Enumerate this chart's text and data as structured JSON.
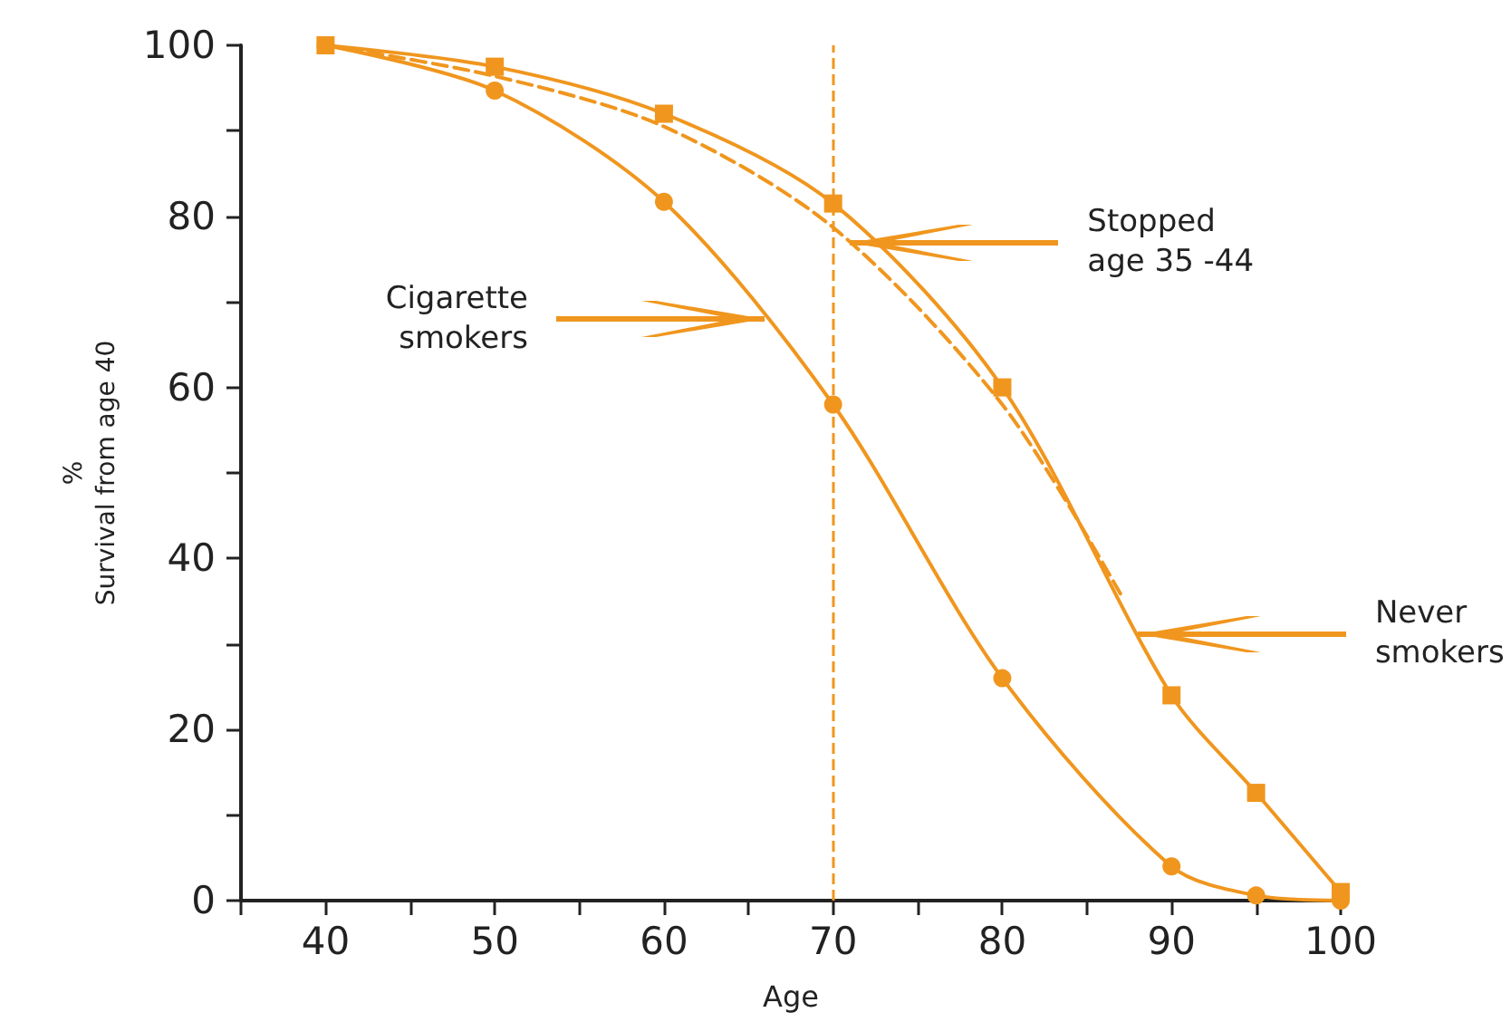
{
  "chart_data": {
    "type": "line",
    "xlabel": "Age",
    "ylabel": "%\nSurvival from age 40",
    "xlim": [
      35,
      100
    ],
    "xticks": [
      {
        "value": 35,
        "label": null
      },
      40,
      {
        "value": 45,
        "label": null
      },
      50,
      {
        "value": 55,
        "label": null
      },
      60,
      {
        "value": 65,
        "label": null
      },
      70,
      {
        "value": 75,
        "label": null
      },
      80,
      {
        "value": 85,
        "label": null
      },
      90,
      {
        "value": 95,
        "label": null
      },
      100
    ],
    "ylim": [
      0,
      100
    ],
    "yticks": [
      0,
      {
        "value": 10,
        "label": null
      },
      20,
      {
        "value": 30,
        "label": null
      },
      40,
      {
        "value": 50,
        "label": null
      },
      60,
      {
        "value": 70,
        "label": null
      },
      80,
      {
        "value": 90,
        "label": null
      },
      100
    ],
    "grid": false,
    "series": [
      {
        "color": "#f0961e",
        "marker": "circle",
        "line_style": "solid",
        "x": [
          40,
          50,
          60,
          70,
          80,
          90,
          95,
          100
        ],
        "values": [
          100,
          94.7,
          81.7,
          58,
          26,
          4,
          0.6,
          0
        ]
      },
      {
        "color": "#f0961e",
        "marker": "none",
        "line_style": "dashed",
        "x": [
          40,
          50,
          60,
          70,
          80,
          87
        ],
        "values": [
          100,
          96.4,
          90.5,
          78.7,
          58,
          35.8
        ]
      },
      {
        "color": "#f0961e",
        "marker": "square",
        "line_style": "solid",
        "x": [
          40,
          50,
          60,
          70,
          80,
          90,
          95,
          100
        ],
        "values": [
          100,
          97.5,
          92,
          81.5,
          60,
          24,
          12.6,
          1
        ]
      }
    ],
    "ref_lines": [
      {
        "axis": "x",
        "value": 70,
        "color": "#f0961e",
        "line_style": "dashed"
      }
    ],
    "annotations": [
      {
        "text": "Cigarette\nsmokers",
        "x": 66,
        "y": 68
      },
      {
        "text": "Stopped\nage 35 -44",
        "x": 71,
        "y": 77
      },
      {
        "text": "Never\nsmokers",
        "x": 88,
        "y": 31.2
      }
    ]
  }
}
